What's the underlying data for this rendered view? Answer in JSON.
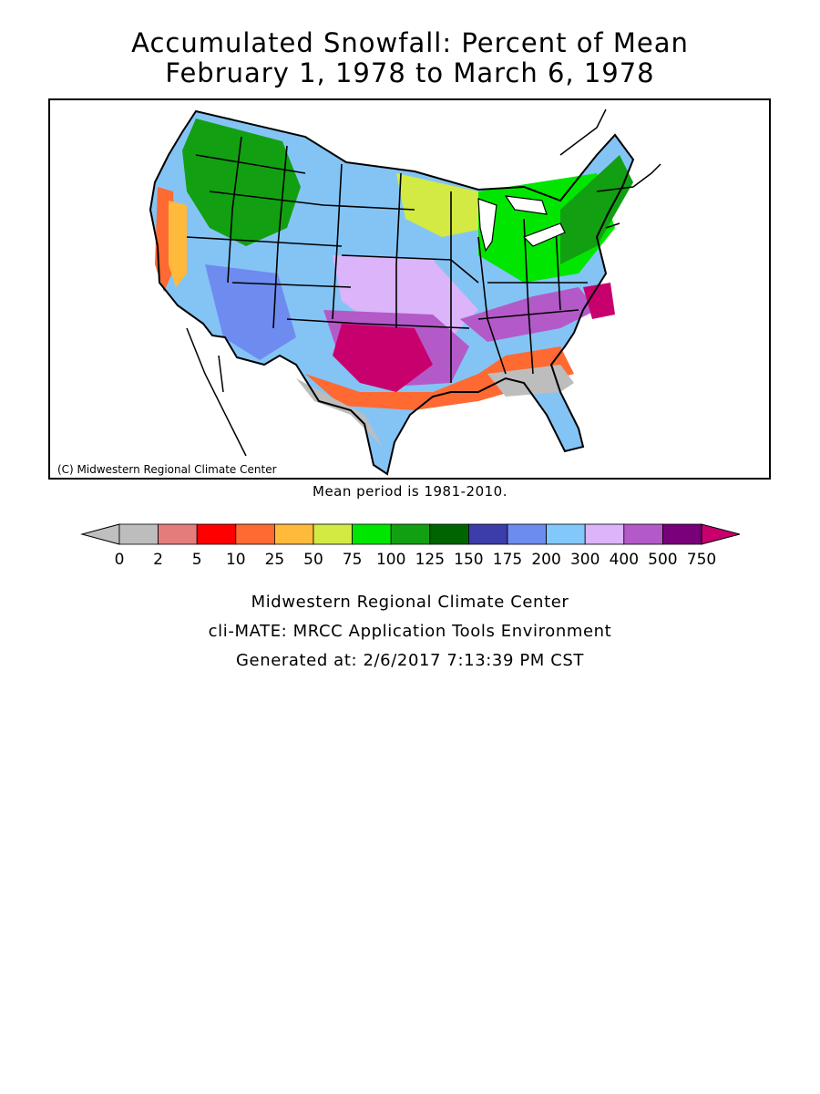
{
  "title_line1": "Accumulated Snowfall: Percent of Mean",
  "title_line2": "February 1, 1978 to March 6, 1978",
  "copyright": "(C) Midwestern Regional Climate Center",
  "mean_period": "Mean period is 1981-2010.",
  "legend": {
    "tick_labels": [
      "0",
      "2",
      "5",
      "10",
      "25",
      "50",
      "75",
      "100",
      "125",
      "150",
      "175",
      "200",
      "300",
      "400",
      "500",
      "750"
    ],
    "below_color": "#bfbfbf",
    "above_color": "#c8006e",
    "colors": [
      "#bdbdbd",
      "#e47c7c",
      "#ff0000",
      "#ff6a33",
      "#ffb93b",
      "#d2ea43",
      "#00e600",
      "#12a012",
      "#006400",
      "#3c3caa",
      "#6e8cf0",
      "#82c8fa",
      "#dcb4fa",
      "#b45ac8",
      "#780078"
    ]
  },
  "footer": {
    "line1": "Midwestern Regional Climate Center",
    "line2": "cli-MATE: MRCC Application Tools Environment",
    "line3": "Generated at: 2/6/2017 7:13:39 PM CST"
  }
}
